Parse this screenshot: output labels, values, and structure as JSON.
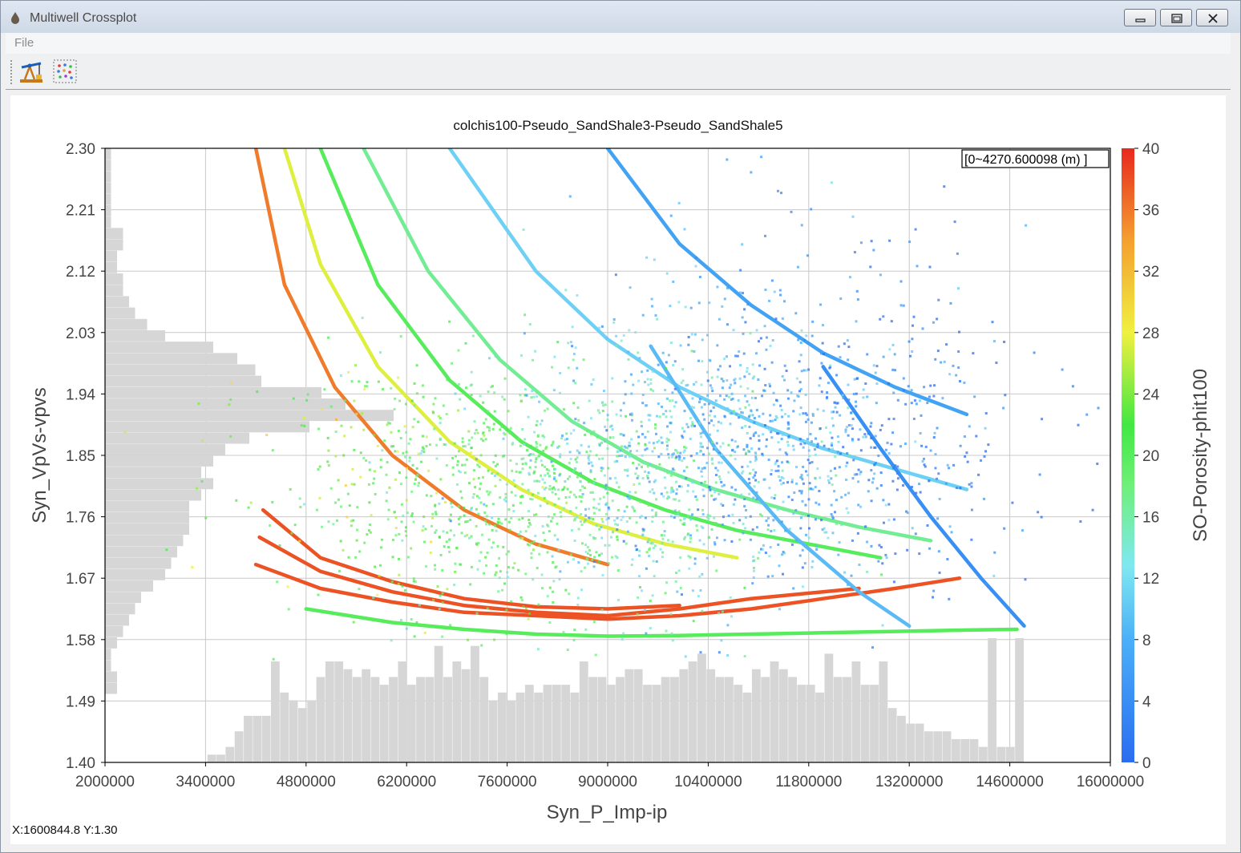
{
  "window": {
    "title": "Multiwell Crossplot",
    "buttons": [
      "minimize",
      "restore",
      "close"
    ]
  },
  "menu": {
    "file": "File"
  },
  "toolbar": {
    "buttons": [
      {
        "name": "well-pumpjack-tool",
        "icon": "pumpjack-icon"
      },
      {
        "name": "scatter-settings-tool",
        "icon": "scatter-dots-icon"
      }
    ]
  },
  "plot": {
    "title": "colchis100-Pseudo_SandShale3-Pseudo_SandShale5",
    "depth_range_label": "[0~4270.600098 (m) ]",
    "status": "X:1600844.8 Y:1.30"
  },
  "chart_data": {
    "type": "scatter",
    "title": "colchis100-Pseudo_SandShale3-Pseudo_SandShale5",
    "xlabel": "Syn_P_Imp-ip",
    "ylabel": "Syn_VpVs-vpvs",
    "colorbar_label": "SO-Porosity-phit100",
    "xlim": [
      2000000,
      16000000
    ],
    "ylim": [
      1.4,
      2.3
    ],
    "clim": [
      0,
      40
    ],
    "xticks": [
      "2000000",
      "3400000",
      "4800000",
      "6200000",
      "7600000",
      "9000000",
      "10400000",
      "11800000",
      "13200000",
      "14600000",
      "16000000"
    ],
    "yticks": [
      "1.40",
      "1.49",
      "1.58",
      "1.67",
      "1.76",
      "1.85",
      "1.94",
      "2.03",
      "2.12",
      "2.21",
      "2.30"
    ],
    "cticks": [
      "0",
      "4",
      "8",
      "12",
      "16",
      "20",
      "24",
      "28",
      "32",
      "36",
      "40"
    ],
    "colormap": [
      "#2b6cf0",
      "#3fa0f5",
      "#7fe0f5",
      "#6ff07a",
      "#3ee83e",
      "#f0f040",
      "#f4a030",
      "#e8281e"
    ],
    "grid": true,
    "x_histogram_color": "#d6d6d6",
    "y_histogram_color": "#d6d6d6",
    "x_histogram_counts": [
      0,
      1,
      1,
      2,
      4,
      6,
      6,
      6,
      13,
      9,
      8,
      7,
      8,
      11,
      13,
      13,
      12,
      11,
      12,
      11,
      10,
      11,
      13,
      10,
      11,
      11,
      15,
      11,
      13,
      12,
      15,
      11,
      8,
      9,
      8,
      9,
      10,
      9,
      10,
      10,
      10,
      9,
      13,
      11,
      11,
      10,
      11,
      12,
      12,
      10,
      10,
      11,
      11,
      12,
      13,
      14,
      12,
      11,
      11,
      10,
      9,
      12,
      11,
      13,
      12,
      11,
      10,
      10,
      9,
      14,
      11,
      11,
      13,
      10,
      10,
      13,
      7,
      6,
      5,
      5,
      4,
      4,
      4,
      3,
      3,
      3,
      2,
      16,
      2,
      2,
      16
    ],
    "y_histogram_counts": [
      2,
      2,
      1,
      1,
      2,
      3,
      4,
      5,
      6,
      8,
      10,
      11,
      12,
      13,
      14,
      14,
      14,
      16,
      18,
      16,
      18,
      20,
      24,
      34,
      48,
      40,
      36,
      26,
      25,
      22,
      18,
      10,
      7,
      5,
      4,
      3,
      3,
      2,
      2,
      3,
      3,
      1,
      1,
      1,
      1,
      1,
      1,
      1
    ],
    "curves": [
      {
        "porosity": 38,
        "points": [
          [
            4100000,
            1.69
          ],
          [
            5000000,
            1.655
          ],
          [
            6000000,
            1.635
          ],
          [
            7000000,
            1.62
          ],
          [
            8000000,
            1.615
          ],
          [
            9000000,
            1.61
          ],
          [
            10000000,
            1.615
          ],
          [
            11000000,
            1.625
          ],
          [
            12000000,
            1.64
          ],
          [
            13000000,
            1.655
          ],
          [
            13900000,
            1.67
          ]
        ]
      },
      {
        "porosity": 38,
        "points": [
          [
            4150000,
            1.73
          ],
          [
            5000000,
            1.68
          ],
          [
            6000000,
            1.65
          ],
          [
            7000000,
            1.63
          ],
          [
            8000000,
            1.62
          ],
          [
            9000000,
            1.615
          ],
          [
            10000000,
            1.625
          ],
          [
            11000000,
            1.64
          ],
          [
            12500000,
            1.655
          ]
        ]
      },
      {
        "porosity": 38,
        "points": [
          [
            4200000,
            1.77
          ],
          [
            5000000,
            1.7
          ],
          [
            6000000,
            1.665
          ],
          [
            7000000,
            1.64
          ],
          [
            8000000,
            1.628
          ],
          [
            9000000,
            1.625
          ],
          [
            10000000,
            1.63
          ]
        ]
      },
      {
        "porosity": 20,
        "points": [
          [
            4800000,
            1.625
          ],
          [
            6000000,
            1.605
          ],
          [
            7000000,
            1.595
          ],
          [
            8000000,
            1.588
          ],
          [
            9000000,
            1.585
          ],
          [
            10000000,
            1.586
          ],
          [
            11000000,
            1.588
          ],
          [
            12000000,
            1.59
          ],
          [
            13000000,
            1.592
          ],
          [
            14000000,
            1.594
          ],
          [
            14700000,
            1.595
          ]
        ]
      },
      {
        "porosity": 6,
        "points": [
          [
            9000000,
            2.3
          ],
          [
            10000000,
            2.16
          ],
          [
            11000000,
            2.07
          ],
          [
            12000000,
            2.0
          ],
          [
            13000000,
            1.95
          ],
          [
            14000000,
            1.91
          ]
        ]
      },
      {
        "porosity": 10,
        "points": [
          [
            6800000,
            2.3
          ],
          [
            8000000,
            2.12
          ],
          [
            9000000,
            2.02
          ],
          [
            10000000,
            1.95
          ],
          [
            11000000,
            1.9
          ],
          [
            12000000,
            1.86
          ],
          [
            13000000,
            1.83
          ],
          [
            14000000,
            1.8
          ]
        ]
      },
      {
        "porosity": 16,
        "points": [
          [
            5600000,
            2.3
          ],
          [
            6500000,
            2.12
          ],
          [
            7500000,
            1.99
          ],
          [
            8500000,
            1.9
          ],
          [
            9500000,
            1.84
          ],
          [
            10500000,
            1.8
          ],
          [
            11500000,
            1.77
          ],
          [
            12500000,
            1.745
          ],
          [
            13500000,
            1.725
          ]
        ]
      },
      {
        "porosity": 20,
        "points": [
          [
            5000000,
            2.3
          ],
          [
            5800000,
            2.1
          ],
          [
            6800000,
            1.96
          ],
          [
            7800000,
            1.87
          ],
          [
            8800000,
            1.81
          ],
          [
            9800000,
            1.77
          ],
          [
            10800000,
            1.74
          ],
          [
            11800000,
            1.72
          ],
          [
            12800000,
            1.7
          ]
        ]
      },
      {
        "porosity": 28,
        "points": [
          [
            4500000,
            2.3
          ],
          [
            5000000,
            2.13
          ],
          [
            5800000,
            1.98
          ],
          [
            6800000,
            1.87
          ],
          [
            7800000,
            1.8
          ],
          [
            8800000,
            1.75
          ],
          [
            9800000,
            1.72
          ],
          [
            10800000,
            1.7
          ]
        ]
      },
      {
        "porosity": 36,
        "points": [
          [
            4100000,
            2.3
          ],
          [
            4500000,
            2.1
          ],
          [
            5200000,
            1.95
          ],
          [
            6000000,
            1.85
          ],
          [
            7000000,
            1.77
          ],
          [
            8000000,
            1.72
          ],
          [
            9000000,
            1.69
          ]
        ]
      },
      {
        "porosity": 4,
        "points": [
          [
            12000000,
            1.98
          ],
          [
            12800000,
            1.86
          ],
          [
            13500000,
            1.76
          ],
          [
            14200000,
            1.67
          ],
          [
            14800000,
            1.6
          ]
        ]
      },
      {
        "porosity": 8,
        "points": [
          [
            9600000,
            2.01
          ],
          [
            10500000,
            1.86
          ],
          [
            11500000,
            1.74
          ],
          [
            12500000,
            1.65
          ],
          [
            13200000,
            1.6
          ]
        ]
      }
    ],
    "scatter_clouds": [
      {
        "cx": 8200000,
        "cy": 1.78,
        "sx": 1700000,
        "sy": 0.09,
        "n": 900,
        "porosity": 18
      },
      {
        "cx": 10800000,
        "cy": 1.86,
        "sx": 1500000,
        "sy": 0.09,
        "n": 800,
        "porosity": 7
      },
      {
        "cx": 11700000,
        "cy": 1.92,
        "sx": 1600000,
        "sy": 0.14,
        "n": 400,
        "porosity": 5
      },
      {
        "cx": 6500000,
        "cy": 1.82,
        "sx": 1300000,
        "sy": 0.1,
        "n": 250,
        "porosity": 20
      }
    ]
  }
}
